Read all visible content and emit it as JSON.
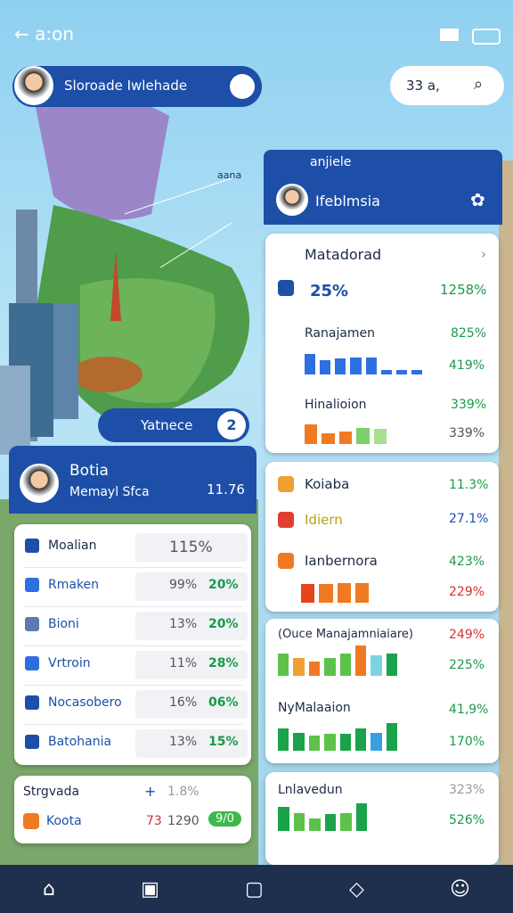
{
  "status": {
    "time": "a:on"
  },
  "search": {
    "label": "Sloroade Iwlehade",
    "pill": "33 a,"
  },
  "map": {
    "label": "aana"
  },
  "right": {
    "header": "anjiele",
    "title": "Ifeblmsia",
    "card1": {
      "title": "Matadorad",
      "left": "25%",
      "right": "1258%",
      "rows": [
        {
          "label": "Ranajamen",
          "value": "825%",
          "sub": "419%"
        },
        {
          "label": "Hinalioion",
          "value": "339%",
          "sub": "339%"
        }
      ]
    },
    "card2": {
      "rows": [
        {
          "label": "Koiaba",
          "value": "11.3%"
        },
        {
          "label": "Idiern",
          "value": "27.1%"
        },
        {
          "label": "Ianbernora",
          "value": "423%",
          "sub": "229%"
        }
      ]
    },
    "card3": {
      "rows": [
        {
          "label": "(Ouce Manajamniaiare)",
          "value": "249%",
          "sub": "225%"
        },
        {
          "label": "NyMalaaion",
          "value": "41,9%",
          "sub": "170%"
        }
      ]
    },
    "card4": {
      "rows": [
        {
          "label": "Lnlavedun",
          "value": "323%",
          "sub": "526%"
        }
      ]
    }
  },
  "left": {
    "pill": "Yatnece",
    "badge": "2",
    "name": "Botia",
    "subtitle": "Memayl Sfca",
    "amount": "11.76",
    "list": [
      {
        "label": "Moalian",
        "a": "115%"
      },
      {
        "label": "Rmaken",
        "a": "99%",
        "b": "20%"
      },
      {
        "label": "Bioni",
        "a": "13%",
        "b": "20%"
      },
      {
        "label": "Vrtroin",
        "a": "11%",
        "b": "28%"
      },
      {
        "label": "Nocasobero",
        "a": "16%",
        "b": "06%"
      },
      {
        "label": "Batohania",
        "a": "13%",
        "b": "15%"
      }
    ],
    "card2": [
      {
        "label": "Strgvada",
        "a": "1.8%"
      },
      {
        "label": "Koota",
        "a": "73",
        "b": "1290",
        "c": "9/0"
      }
    ]
  },
  "mini_bars": [
    {
      "values": [
        90,
        60,
        70,
        75,
        72,
        20,
        20,
        20
      ],
      "colors": [
        "#2d6fe0",
        "#2d6fe0",
        "#2d6fe0",
        "#2d6fe0",
        "#2d6fe0",
        "#2d6fe0",
        "#2d6fe0",
        "#2d6fe0"
      ]
    },
    {
      "values": [
        90,
        50,
        60,
        75,
        70
      ],
      "colors": [
        "#f07a22",
        "#f07a22",
        "#f07a22",
        "#7ccf6a",
        "#a8e08f"
      ]
    },
    {
      "values": [
        80,
        80,
        85,
        85
      ],
      "colors": [
        "#e8441c",
        "#f07a22",
        "#f07a22",
        "#f07a22"
      ]
    },
    {
      "values": [
        70,
        55,
        45,
        55,
        70,
        95,
        65,
        70
      ],
      "colors": [
        "#5cc24a",
        "#f0a030",
        "#f07a22",
        "#5cc24a",
        "#5cc24a",
        "#f07a22",
        "#7ed3e0",
        "#1aa34a"
      ]
    },
    {
      "values": [
        75,
        60,
        50,
        55,
        55,
        75,
        60,
        90
      ],
      "colors": [
        "#1aa34a",
        "#1aa34a",
        "#5cc24a",
        "#5cc24a",
        "#1aa34a",
        "#1aa34a",
        "#3a9ee0",
        "#1aa34a"
      ]
    },
    {
      "values": [
        80,
        60,
        40,
        55,
        60,
        90
      ],
      "colors": [
        "#1aa34a",
        "#5cc24a",
        "#5cc24a",
        "#1aa34a",
        "#5cc24a",
        "#1aa34a"
      ]
    }
  ]
}
